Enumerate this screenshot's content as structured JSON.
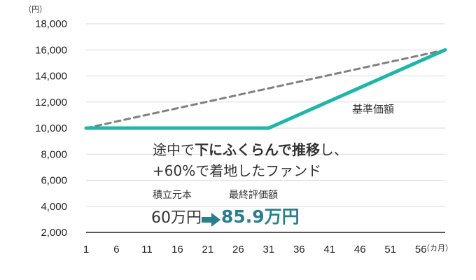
{
  "chart_data": {
    "type": "line",
    "y_unit": "（円）",
    "x_unit": "（カ月）",
    "x_ticks": [
      1,
      6,
      11,
      16,
      21,
      26,
      31,
      36,
      41,
      46,
      51,
      56
    ],
    "y_ticks": [
      "2,000",
      "4,000",
      "6,000",
      "8,000",
      "10,000",
      "12,000",
      "14,000",
      "16,000",
      "18,000"
    ],
    "ylim": [
      2000,
      18000
    ],
    "xlim": [
      1,
      60
    ],
    "grid": "horizontal",
    "series": [
      {
        "name": "基準価額",
        "color": "#1fb5a8",
        "style": "solid",
        "points": [
          [
            1,
            10000
          ],
          [
            31,
            10000
          ],
          [
            60,
            16000
          ]
        ]
      },
      {
        "color": "#808080",
        "style": "dashed",
        "points": [
          [
            1,
            10000
          ],
          [
            60,
            16000
          ]
        ]
      }
    ],
    "annotations": {
      "series_label": "基準価額",
      "line1_a": "途中で",
      "line1_b": "下にふくらんで推移",
      "line1_c": "し、",
      "line2": "+60%で着地したファンド",
      "principal_label": "積立元本",
      "valuation_label": "最終評価額",
      "principal_value": "60万円",
      "valuation_value": "85.9万円"
    }
  }
}
